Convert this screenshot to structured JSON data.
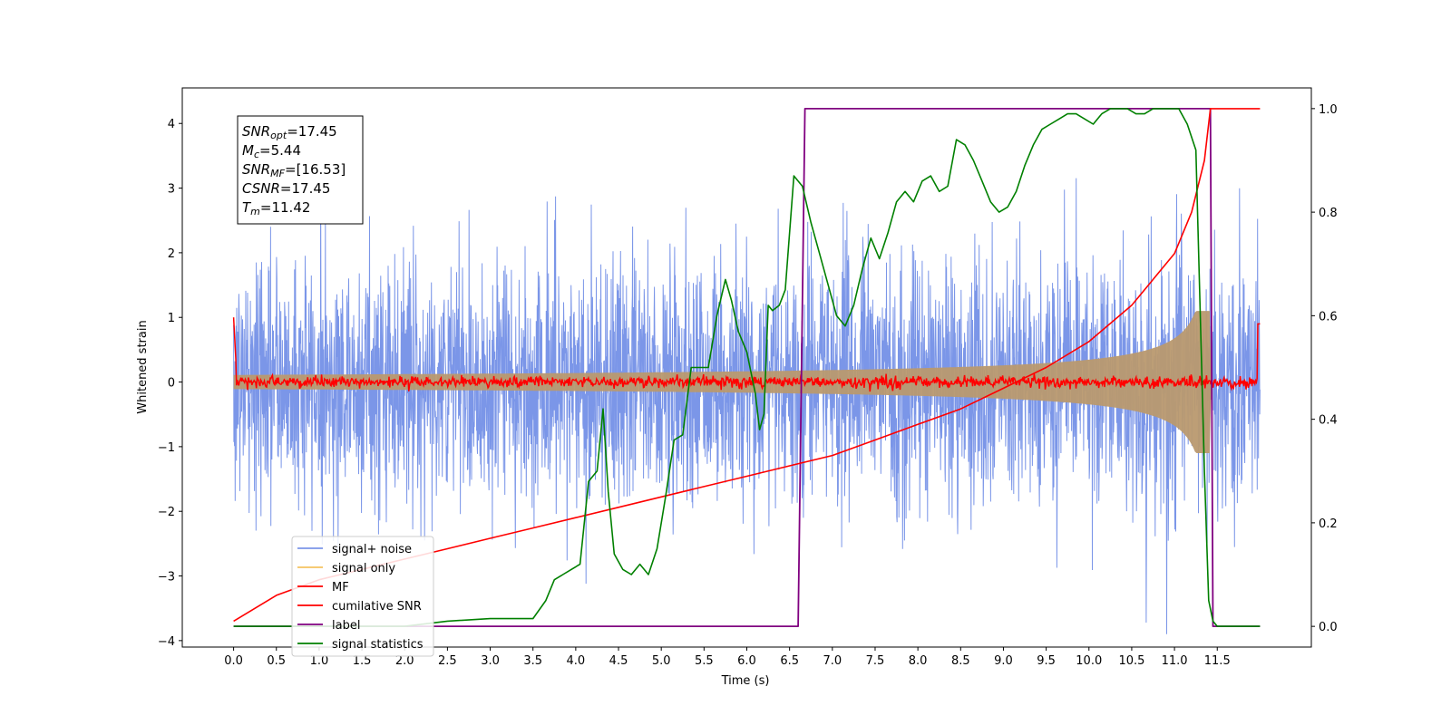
{
  "chart_data": {
    "type": "line",
    "xlabel": "Time (s)",
    "ylabel": "Whitened strain",
    "xlim": [
      -0.6,
      12.6
    ],
    "ylim": [
      -4.1,
      4.55
    ],
    "y2lim": [
      -0.04,
      1.04
    ],
    "x_ticks": [
      0.0,
      0.5,
      1.0,
      1.5,
      2.0,
      2.5,
      3.0,
      3.5,
      4.0,
      4.5,
      5.0,
      5.5,
      6.0,
      6.5,
      7.0,
      7.5,
      8.0,
      8.5,
      9.0,
      9.5,
      10.0,
      10.5,
      11.0,
      11.5
    ],
    "x_tick_labels": [
      "0.0",
      "0.5",
      "1.0",
      "1.5",
      "2.0",
      "2.5",
      "3.0",
      "3.5",
      "4.0",
      "4.5",
      "5.0",
      "5.5",
      "6.0",
      "6.5",
      "7.0",
      "7.5",
      "8.0",
      "8.5",
      "9.0",
      "9.5",
      "10.0",
      "10.5",
      "11.0",
      "11.5"
    ],
    "y_ticks": [
      -4,
      -3,
      -2,
      -1,
      0,
      1,
      2,
      3,
      4
    ],
    "y_tick_labels": [
      "−4",
      "−3",
      "−2",
      "−1",
      "0",
      "1",
      "2",
      "3",
      "4"
    ],
    "y2_ticks": [
      0.0,
      0.2,
      0.4,
      0.6,
      0.8,
      1.0
    ],
    "y2_tick_labels": [
      "0.0",
      "0.2",
      "0.4",
      "0.6",
      "0.8",
      "1.0"
    ],
    "legend_position": "lower-left",
    "grid": false,
    "annotation": [
      {
        "sym": "SNR",
        "sub": "opt",
        "value": "=17.45"
      },
      {
        "sym": "M",
        "sub": "c",
        "value": "=5.44"
      },
      {
        "sym": "SNR",
        "sub": "MF",
        "value": "=[16.53]"
      },
      {
        "sym": "CSNR",
        "sub": "",
        "value": "=17.45"
      },
      {
        "sym": "T",
        "sub": "m",
        "value": "=11.42"
      }
    ],
    "series": [
      {
        "name": "signal+ noise",
        "color": "#7b96e8",
        "axis": "left",
        "description": "whitened noisy strain, x 0 to 12, spread about ±3"
      },
      {
        "name": "signal only",
        "color": "#f5c261",
        "axis": "left",
        "description": "chirp envelope growing to about ±1 near 11.42 s"
      },
      {
        "name": "MF",
        "color": "#ff0000",
        "axis": "left",
        "description": "matched filter output near 0"
      },
      {
        "name": "cumilative SNR",
        "color": "#ff0000",
        "axis": "right",
        "x": [
          0.0,
          0.5,
          1.0,
          1.5,
          2.0,
          2.5,
          3.0,
          3.5,
          4.0,
          4.5,
          5.0,
          5.5,
          6.0,
          6.5,
          7.0,
          7.5,
          8.0,
          8.5,
          9.0,
          9.5,
          10.0,
          10.5,
          11.0,
          11.2,
          11.35,
          11.42,
          12.0
        ],
        "y": [
          0.01,
          0.06,
          0.09,
          0.11,
          0.13,
          0.15,
          0.17,
          0.19,
          0.21,
          0.23,
          0.25,
          0.27,
          0.29,
          0.31,
          0.33,
          0.36,
          0.39,
          0.42,
          0.46,
          0.5,
          0.55,
          0.62,
          0.72,
          0.8,
          0.9,
          1.0,
          1.0
        ]
      },
      {
        "name": "label",
        "color": "#800080",
        "axis": "right",
        "x": [
          0.0,
          6.6,
          6.68,
          11.38,
          11.42,
          11.45,
          12.0
        ],
        "y": [
          0.0,
          0.0,
          1.0,
          1.0,
          1.0,
          0.0,
          0.0
        ]
      },
      {
        "name": "signal statistics",
        "color": "#008000",
        "axis": "right",
        "x": [
          0.0,
          1.0,
          2.0,
          2.5,
          3.0,
          3.5,
          3.65,
          3.75,
          3.85,
          3.95,
          4.05,
          4.15,
          4.25,
          4.32,
          4.38,
          4.45,
          4.55,
          4.65,
          4.75,
          4.85,
          4.95,
          5.05,
          5.15,
          5.25,
          5.35,
          5.45,
          5.55,
          5.65,
          5.75,
          5.82,
          5.9,
          6.0,
          6.1,
          6.15,
          6.2,
          6.25,
          6.3,
          6.38,
          6.45,
          6.55,
          6.65,
          6.75,
          6.85,
          6.95,
          7.05,
          7.15,
          7.25,
          7.35,
          7.45,
          7.55,
          7.65,
          7.75,
          7.85,
          7.95,
          8.05,
          8.15,
          8.25,
          8.35,
          8.45,
          8.55,
          8.65,
          8.75,
          8.85,
          8.95,
          9.05,
          9.15,
          9.25,
          9.35,
          9.45,
          9.55,
          9.65,
          9.75,
          9.85,
          9.95,
          10.05,
          10.15,
          10.25,
          10.35,
          10.45,
          10.55,
          10.65,
          10.75,
          10.85,
          10.95,
          11.05,
          11.15,
          11.25,
          11.35,
          11.4,
          11.45,
          11.5,
          11.55,
          11.65,
          12.0
        ],
        "y": [
          0.0,
          0.0,
          0.0,
          0.01,
          0.015,
          0.015,
          0.05,
          0.09,
          0.1,
          0.11,
          0.12,
          0.28,
          0.3,
          0.42,
          0.26,
          0.14,
          0.11,
          0.1,
          0.12,
          0.1,
          0.15,
          0.25,
          0.36,
          0.37,
          0.5,
          0.5,
          0.5,
          0.6,
          0.67,
          0.63,
          0.57,
          0.53,
          0.45,
          0.38,
          0.41,
          0.62,
          0.61,
          0.62,
          0.65,
          0.87,
          0.85,
          0.78,
          0.72,
          0.66,
          0.6,
          0.58,
          0.62,
          0.69,
          0.75,
          0.71,
          0.76,
          0.82,
          0.84,
          0.82,
          0.86,
          0.87,
          0.84,
          0.85,
          0.94,
          0.93,
          0.9,
          0.86,
          0.82,
          0.8,
          0.81,
          0.84,
          0.89,
          0.93,
          0.96,
          0.97,
          0.98,
          0.99,
          0.99,
          0.98,
          0.97,
          0.99,
          1.0,
          1.0,
          1.0,
          0.99,
          0.99,
          1.0,
          1.0,
          1.0,
          1.0,
          0.97,
          0.92,
          0.3,
          0.05,
          0.01,
          0.0,
          0.0,
          0.0,
          0.0
        ]
      }
    ]
  }
}
